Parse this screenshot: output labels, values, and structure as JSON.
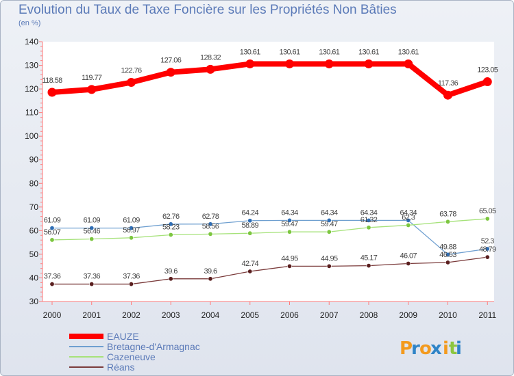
{
  "header": {
    "title": "Evolution du Taux de Taxe Foncière sur les Propriétés Non Bâties",
    "subtitle": "(en %)"
  },
  "brand": {
    "letters": [
      "P",
      "r",
      "o",
      "x",
      "i",
      "t",
      "i"
    ],
    "colors": [
      "#f39a1e",
      "#2f84c7",
      "#f39a1e",
      "#2f84c7",
      "#f39a1e",
      "#8cc63f",
      "#2f84c7"
    ]
  },
  "chart_data": {
    "type": "line",
    "title": "Evolution du Taux de Taxe Foncière sur les Propriétés Non Bâties",
    "ylabel": "(en %)",
    "xlabel": "",
    "ylim": [
      30,
      140
    ],
    "yticks": [
      30,
      40,
      50,
      60,
      70,
      80,
      90,
      100,
      110,
      120,
      130,
      140
    ],
    "x": [
      "2000",
      "2001",
      "2002",
      "2003",
      "2004",
      "2005",
      "2006",
      "2007",
      "2008",
      "2009",
      "2010",
      "2011"
    ],
    "series": [
      {
        "name": "EAUZE",
        "color": "#ff0000",
        "marker": "#ff0000",
        "width": 8,
        "values": [
          118.58,
          119.77,
          122.76,
          127.06,
          128.32,
          130.61,
          130.61,
          130.61,
          130.61,
          130.61,
          117.36,
          123.05
        ],
        "labels": [
          "118.58",
          "119.77",
          "122.76",
          "127.06",
          "128.32",
          "130.61",
          "130.61",
          "130.61",
          "130.61",
          "130.61",
          "117.36",
          "123.05"
        ]
      },
      {
        "name": "Bretagne-d'Armagnac",
        "color": "#6e9fd0",
        "marker": "#2f6eb5",
        "width": 1.3,
        "values": [
          61.09,
          61.09,
          61.09,
          62.76,
          62.78,
          64.24,
          64.34,
          64.34,
          64.34,
          64.34,
          49.88,
          52.3
        ],
        "labels": [
          "61.09",
          "61.09",
          "61.09",
          "62.76",
          "62.78",
          "64.24",
          "64.34",
          "64.34",
          "64.34",
          "64.34",
          "49.88",
          "52.3"
        ]
      },
      {
        "name": "Cazeneuve",
        "color": "#a6e27a",
        "marker": "#7cc63f",
        "width": 1.3,
        "values": [
          56.07,
          56.46,
          56.97,
          58.23,
          58.56,
          58.89,
          59.47,
          59.47,
          61.32,
          62.3,
          63.78,
          65.05
        ],
        "labels": [
          "56.07",
          "56.46",
          "56.97",
          "58.23",
          "58.56",
          "58.89",
          "59.47",
          "59.47",
          "61.32",
          "62.3",
          "63.78",
          "65.05"
        ]
      },
      {
        "name": "Réans",
        "color": "#7a3a3a",
        "marker": "#5a1f1f",
        "width": 1.3,
        "values": [
          37.36,
          37.36,
          37.36,
          39.6,
          39.6,
          42.74,
          44.95,
          44.95,
          45.17,
          46.07,
          46.53,
          48.79
        ],
        "labels": [
          "37.36",
          "37.36",
          "37.36",
          "39.6",
          "39.6",
          "42.74",
          "44.95",
          "44.95",
          "45.17",
          "46.07",
          "46.53",
          "48.79"
        ]
      }
    ],
    "legend": "bottom-left",
    "grid": false
  }
}
